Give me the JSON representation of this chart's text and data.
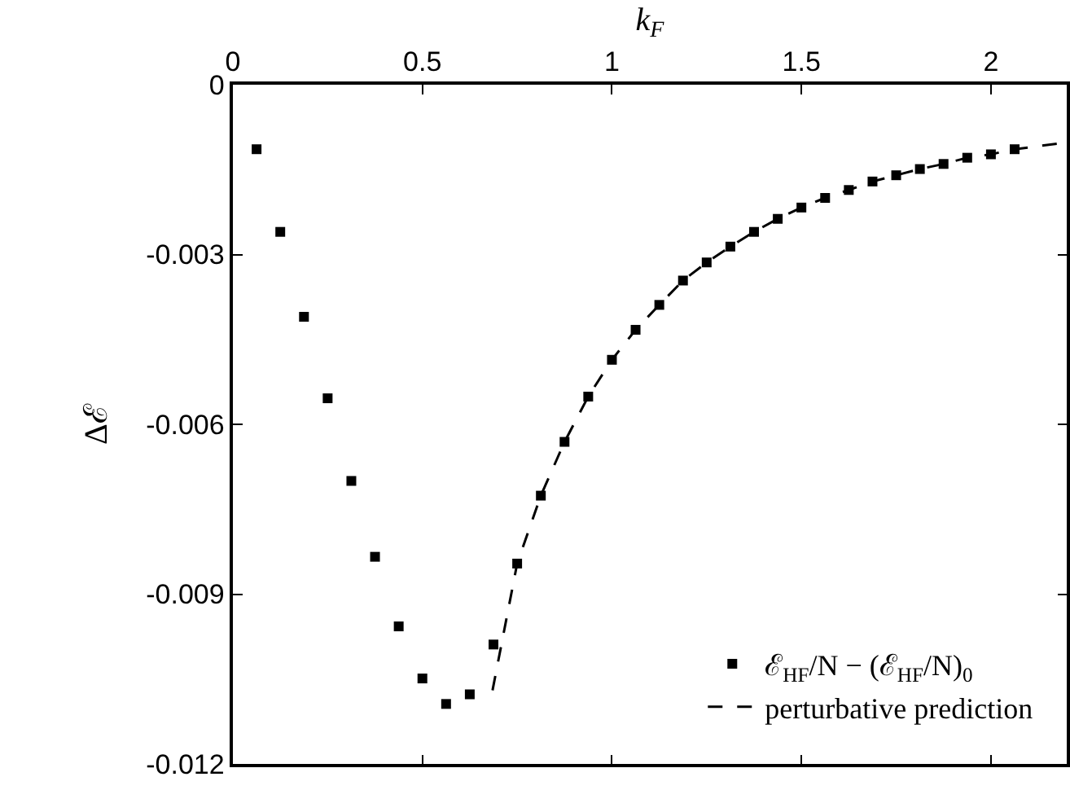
{
  "chart_data": {
    "type": "scatter",
    "xlabel": "k$_{F}$",
    "ylabel": "Δℰ",
    "xlim": [
      0,
      2.2
    ],
    "xticks": [
      0,
      0.5,
      1,
      1.5,
      2
    ],
    "ylim": [
      -0.012,
      0
    ],
    "yticks": [
      0,
      -0.003,
      -0.006,
      -0.009,
      -0.012
    ],
    "grid": false,
    "legend": "bottom right",
    "series": [
      {
        "name": "ℰ$_{HF}$/N − (ℰ$_{HF}$/N)$_{0}$",
        "type": "scatter",
        "marker": "square",
        "color": "#000000",
        "x": [
          0.0625,
          0.125,
          0.1875,
          0.25,
          0.3125,
          0.375,
          0.4375,
          0.5,
          0.5625,
          0.625,
          0.6875,
          0.75,
          0.8125,
          0.875,
          0.9375,
          1,
          1.0625,
          1.125,
          1.1875,
          1.25,
          1.3125,
          1.375,
          1.4375,
          1.5,
          1.5625,
          1.625,
          1.6875,
          1.75,
          1.8125,
          1.875,
          1.9375,
          2,
          2.0625
        ],
        "values": [
          -0.00114,
          -0.0026,
          -0.0041,
          -0.00554,
          -0.007,
          -0.00834,
          -0.00957,
          -0.01049,
          -0.01094,
          -0.01077,
          -0.00989,
          -0.00846,
          -0.00726,
          -0.00631,
          -0.00551,
          -0.00486,
          -0.00433,
          -0.00389,
          -0.00346,
          -0.00314,
          -0.00286,
          -0.0026,
          -0.00237,
          -0.00217,
          -0.002,
          -0.00186,
          -0.00171,
          -0.0016,
          -0.00149,
          -0.0014,
          -0.00129,
          -0.00123,
          -0.00114
        ]
      },
      {
        "name": "perturbative prediction",
        "type": "line",
        "marker": "none",
        "line_style": "dashed",
        "color": "#000000",
        "x": [
          0.685,
          0.75,
          0.8125,
          0.875,
          0.9375,
          1,
          1.0625,
          1.125,
          1.1875,
          1.25,
          1.3125,
          1.375,
          1.4375,
          1.5,
          1.5625,
          1.625,
          1.6875,
          1.75,
          1.8125,
          1.875,
          1.9375,
          2,
          2.0625,
          2.19
        ],
        "values": [
          -0.0107,
          -0.00846,
          -0.00726,
          -0.00631,
          -0.00551,
          -0.00486,
          -0.00433,
          -0.00389,
          -0.00346,
          -0.00314,
          -0.00286,
          -0.0026,
          -0.00237,
          -0.00217,
          -0.002,
          -0.00186,
          -0.00171,
          -0.0016,
          -0.00149,
          -0.0014,
          -0.00129,
          -0.00123,
          -0.00114,
          -0.00103
        ]
      }
    ]
  }
}
